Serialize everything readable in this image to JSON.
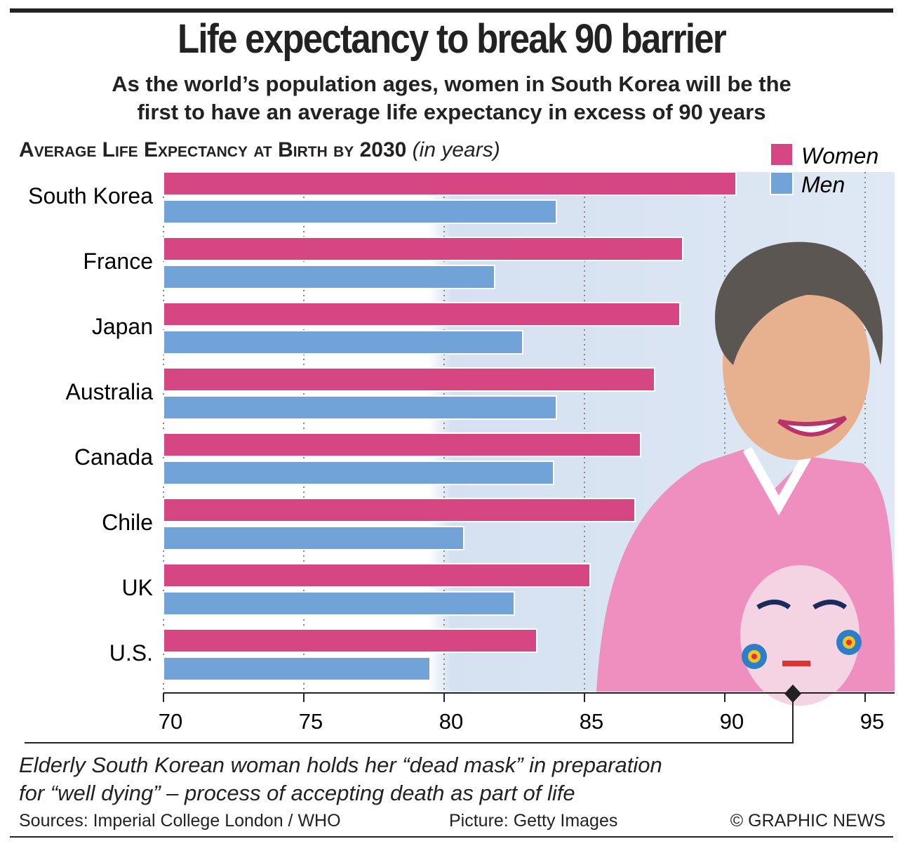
{
  "header": {
    "title": "Life expectancy to break 90 barrier",
    "subtitle_line1": "As the world’s population ages, women in South Korea will be the",
    "subtitle_line2": "first to have an average life expectancy in excess of 90 years"
  },
  "chart_data": {
    "type": "bar",
    "orientation": "horizontal",
    "title": "Average Life Expectancy at Birth by 2030",
    "unit": "(in years)",
    "categories": [
      "South Korea",
      "France",
      "Japan",
      "Australia",
      "Canada",
      "Chile",
      "UK",
      "U.S."
    ],
    "series": [
      {
        "name": "Women",
        "color": "#d64682",
        "values": [
          90.4,
          88.5,
          88.4,
          87.5,
          87.0,
          86.8,
          85.2,
          83.3
        ]
      },
      {
        "name": "Men",
        "color": "#72a3d8",
        "values": [
          84.0,
          81.8,
          82.8,
          84.0,
          83.9,
          80.7,
          82.5,
          79.5
        ]
      }
    ],
    "xlim": [
      70,
      95
    ],
    "xticks": [
      "70",
      "75",
      "80",
      "85",
      "90",
      "95"
    ],
    "legend": "top-right",
    "grid": true
  },
  "caption": {
    "line1": "Elderly South Korean woman holds her “dead mask” in preparation",
    "line2": "for “well dying” – process of accepting death as part of life"
  },
  "footer": {
    "sources": "Sources: Imperial College London / WHO",
    "picture": "Picture: Getty Images",
    "credit": "© GRAPHIC NEWS"
  }
}
